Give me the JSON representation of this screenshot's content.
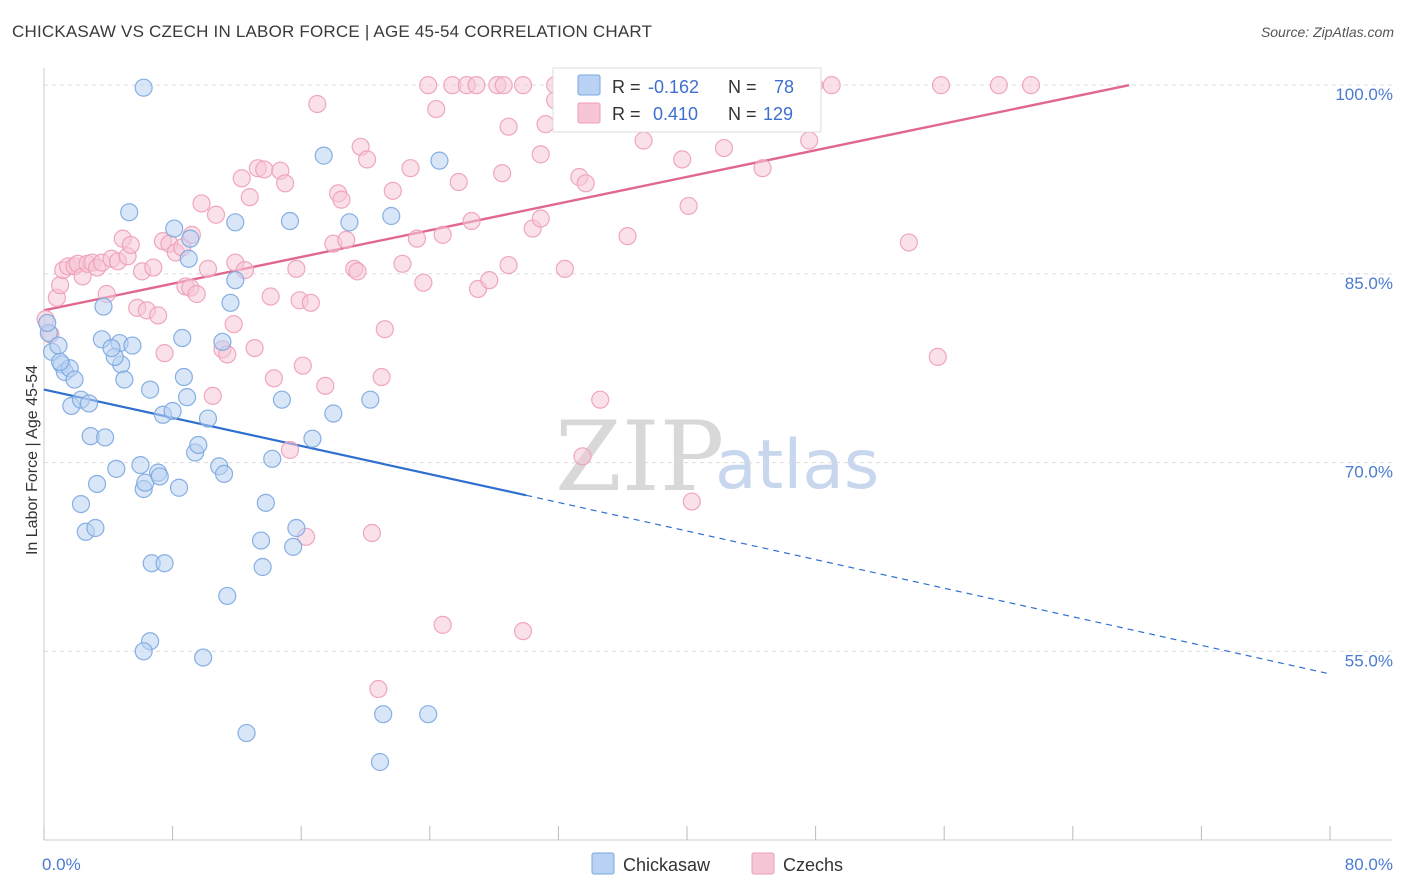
{
  "title": "CHICKASAW VS CZECH IN LABOR FORCE | AGE 45-54 CORRELATION CHART",
  "source": "Source: ZipAtlas.com",
  "watermark": {
    "part1": "ZIP",
    "part2": "atlas"
  },
  "chart_data": {
    "type": "scatter",
    "ylabel": "In Labor Force | Age 45-54",
    "xlim": [
      0,
      80
    ],
    "ylim": [
      40,
      102
    ],
    "x_tick_labels": [
      "0.0%",
      "80.0%"
    ],
    "y_tick_labels": [
      "100.0%",
      "85.0%",
      "70.0%",
      "55.0%"
    ],
    "y_ticks": [
      100,
      85,
      70,
      55
    ],
    "legend_top": [
      {
        "r_label": "R =",
        "r_value": "-0.162",
        "n_label": "N =",
        "n_value": "78"
      },
      {
        "r_label": "R =",
        "r_value": "0.410",
        "n_label": "N =",
        "n_value": "129"
      }
    ],
    "series": [
      {
        "name": "Chickasaw",
        "color": "#7aa7e0",
        "fill": "#b9d1f2",
        "trend": {
          "x0": 0,
          "y0": 75.8,
          "x1": 30,
          "y1": 67.4,
          "dash_to_x": 80,
          "dash_to_y": 53.2,
          "color": "#2f6fcf"
        },
        "points": [
          [
            0.3,
            80.3
          ],
          [
            0.5,
            78.8
          ],
          [
            0.9,
            79.3
          ],
          [
            1.1,
            77.8
          ],
          [
            1.3,
            77.2
          ],
          [
            1.6,
            77.5
          ],
          [
            1.9,
            76.6
          ],
          [
            1.7,
            74.5
          ],
          [
            2.3,
            75.0
          ],
          [
            2.8,
            74.7
          ],
          [
            2.9,
            72.1
          ],
          [
            3.8,
            72.0
          ],
          [
            3.3,
            68.3
          ],
          [
            2.3,
            66.7
          ],
          [
            2.6,
            64.5
          ],
          [
            3.2,
            64.8
          ],
          [
            4.5,
            69.5
          ],
          [
            4.8,
            77.8
          ],
          [
            5.0,
            76.6
          ],
          [
            4.7,
            79.5
          ],
          [
            4.4,
            78.4
          ],
          [
            5.5,
            79.3
          ],
          [
            3.7,
            82.4
          ],
          [
            3.6,
            79.8
          ],
          [
            6.0,
            69.8
          ],
          [
            6.2,
            67.9
          ],
          [
            6.3,
            68.4
          ],
          [
            7.1,
            69.2
          ],
          [
            7.2,
            68.9
          ],
          [
            6.6,
            75.8
          ],
          [
            7.4,
            73.8
          ],
          [
            8.0,
            74.1
          ],
          [
            8.4,
            68.0
          ],
          [
            8.6,
            79.9
          ],
          [
            8.7,
            76.8
          ],
          [
            8.9,
            75.2
          ],
          [
            9.4,
            70.8
          ],
          [
            9.6,
            71.4
          ],
          [
            10.2,
            73.5
          ],
          [
            10.9,
            69.7
          ],
          [
            11.2,
            69.1
          ],
          [
            11.1,
            79.6
          ],
          [
            11.6,
            82.7
          ],
          [
            11.9,
            84.5
          ],
          [
            11.9,
            89.1
          ],
          [
            9.0,
            86.2
          ],
          [
            9.1,
            87.8
          ],
          [
            8.1,
            88.6
          ],
          [
            5.3,
            89.9
          ],
          [
            6.2,
            99.8
          ],
          [
            17.4,
            94.4
          ],
          [
            19.0,
            89.1
          ],
          [
            21.6,
            89.6
          ],
          [
            24.6,
            94.0
          ],
          [
            15.3,
            89.2
          ],
          [
            14.8,
            75.0
          ],
          [
            14.2,
            70.3
          ],
          [
            11.4,
            59.4
          ],
          [
            12.6,
            48.5
          ],
          [
            13.5,
            63.8
          ],
          [
            13.6,
            61.7
          ],
          [
            13.8,
            66.8
          ],
          [
            15.5,
            63.3
          ],
          [
            15.7,
            64.8
          ],
          [
            16.7,
            71.9
          ],
          [
            18.0,
            73.9
          ],
          [
            20.3,
            75.0
          ],
          [
            6.7,
            62.0
          ],
          [
            7.5,
            62.0
          ],
          [
            6.6,
            55.8
          ],
          [
            6.2,
            55.0
          ],
          [
            9.9,
            54.5
          ],
          [
            20.9,
            46.2
          ],
          [
            21.1,
            50.0
          ],
          [
            23.9,
            50.0
          ],
          [
            0.2,
            81.1
          ],
          [
            1.0,
            78.0
          ],
          [
            4.2,
            79.1
          ]
        ]
      },
      {
        "name": "Czechs",
        "color": "#ee9fb8",
        "fill": "#f6c6d6",
        "trend": {
          "x0": 0,
          "y0": 82.1,
          "x1": 67.5,
          "y1": 100.0,
          "color": "#e0688f"
        },
        "points": [
          [
            0.1,
            81.4
          ],
          [
            0.4,
            80.2
          ],
          [
            0.8,
            83.1
          ],
          [
            1.0,
            84.1
          ],
          [
            1.2,
            85.3
          ],
          [
            1.5,
            85.6
          ],
          [
            1.9,
            85.6
          ],
          [
            2.1,
            85.8
          ],
          [
            2.4,
            84.8
          ],
          [
            2.7,
            85.8
          ],
          [
            3.0,
            85.9
          ],
          [
            3.3,
            85.5
          ],
          [
            3.6,
            85.9
          ],
          [
            3.9,
            83.4
          ],
          [
            4.2,
            86.2
          ],
          [
            4.6,
            86.0
          ],
          [
            4.9,
            87.8
          ],
          [
            5.2,
            86.4
          ],
          [
            5.4,
            87.3
          ],
          [
            5.8,
            82.3
          ],
          [
            6.1,
            85.2
          ],
          [
            6.4,
            82.1
          ],
          [
            6.8,
            85.5
          ],
          [
            7.1,
            81.7
          ],
          [
            7.5,
            78.7
          ],
          [
            7.4,
            87.6
          ],
          [
            7.8,
            87.4
          ],
          [
            8.2,
            86.7
          ],
          [
            8.6,
            87.1
          ],
          [
            8.8,
            84.0
          ],
          [
            9.1,
            83.9
          ],
          [
            9.2,
            88.1
          ],
          [
            9.5,
            83.4
          ],
          [
            9.8,
            90.6
          ],
          [
            10.2,
            85.4
          ],
          [
            10.5,
            75.3
          ],
          [
            10.7,
            89.7
          ],
          [
            11.1,
            79.0
          ],
          [
            11.4,
            78.6
          ],
          [
            11.8,
            81.0
          ],
          [
            11.9,
            85.9
          ],
          [
            12.3,
            92.6
          ],
          [
            12.5,
            85.3
          ],
          [
            12.8,
            91.1
          ],
          [
            13.1,
            79.1
          ],
          [
            13.3,
            93.4
          ],
          [
            13.7,
            93.3
          ],
          [
            14.1,
            83.2
          ],
          [
            14.3,
            76.7
          ],
          [
            14.7,
            93.2
          ],
          [
            15.0,
            92.2
          ],
          [
            15.7,
            85.4
          ],
          [
            15.9,
            82.9
          ],
          [
            16.1,
            77.7
          ],
          [
            16.6,
            82.7
          ],
          [
            15.3,
            71.0
          ],
          [
            16.3,
            64.1
          ],
          [
            17.0,
            98.5
          ],
          [
            17.5,
            76.1
          ],
          [
            18.0,
            87.4
          ],
          [
            18.3,
            91.4
          ],
          [
            18.5,
            90.9
          ],
          [
            18.8,
            87.7
          ],
          [
            19.3,
            85.4
          ],
          [
            19.5,
            85.2
          ],
          [
            19.7,
            95.1
          ],
          [
            20.1,
            94.1
          ],
          [
            20.4,
            64.4
          ],
          [
            20.8,
            52.0
          ],
          [
            21.0,
            76.8
          ],
          [
            21.2,
            80.6
          ],
          [
            21.7,
            91.6
          ],
          [
            22.3,
            85.8
          ],
          [
            22.8,
            93.4
          ],
          [
            23.2,
            87.8
          ],
          [
            23.6,
            84.3
          ],
          [
            23.9,
            100.0
          ],
          [
            24.4,
            98.1
          ],
          [
            24.8,
            88.1
          ],
          [
            24.8,
            57.1
          ],
          [
            25.4,
            100.0
          ],
          [
            25.8,
            92.3
          ],
          [
            26.3,
            100.0
          ],
          [
            26.6,
            89.2
          ],
          [
            26.9,
            100.0
          ],
          [
            27.0,
            83.8
          ],
          [
            27.7,
            84.5
          ],
          [
            28.2,
            100.0
          ],
          [
            28.5,
            93.0
          ],
          [
            28.6,
            100.0
          ],
          [
            28.9,
            85.7
          ],
          [
            28.9,
            96.7
          ],
          [
            29.8,
            100.0
          ],
          [
            29.8,
            56.6
          ],
          [
            30.4,
            88.6
          ],
          [
            30.9,
            89.4
          ],
          [
            30.9,
            94.5
          ],
          [
            31.2,
            96.9
          ],
          [
            31.8,
            98.8
          ],
          [
            31.8,
            100.0
          ],
          [
            32.4,
            85.4
          ],
          [
            32.7,
            100.0
          ],
          [
            33.3,
            92.7
          ],
          [
            33.7,
            92.2
          ],
          [
            34.4,
            100.0
          ],
          [
            34.6,
            100.0
          ],
          [
            34.6,
            75.0
          ],
          [
            33.5,
            70.5
          ],
          [
            35.0,
            100.0
          ],
          [
            36.3,
            98.2
          ],
          [
            36.3,
            88.0
          ],
          [
            37.3,
            95.6
          ],
          [
            39.7,
            94.1
          ],
          [
            40.1,
            90.4
          ],
          [
            40.3,
            66.9
          ],
          [
            42.3,
            95.0
          ],
          [
            42.7,
            100.0
          ],
          [
            44.7,
            93.4
          ],
          [
            45.2,
            100.0
          ],
          [
            47.6,
            95.6
          ],
          [
            47.8,
            100.0
          ],
          [
            47.9,
            100.0
          ],
          [
            49.0,
            100.0
          ],
          [
            53.8,
            87.5
          ],
          [
            55.6,
            78.4
          ],
          [
            55.8,
            100.0
          ],
          [
            59.4,
            100.0
          ],
          [
            61.4,
            100.0
          ]
        ]
      }
    ]
  }
}
